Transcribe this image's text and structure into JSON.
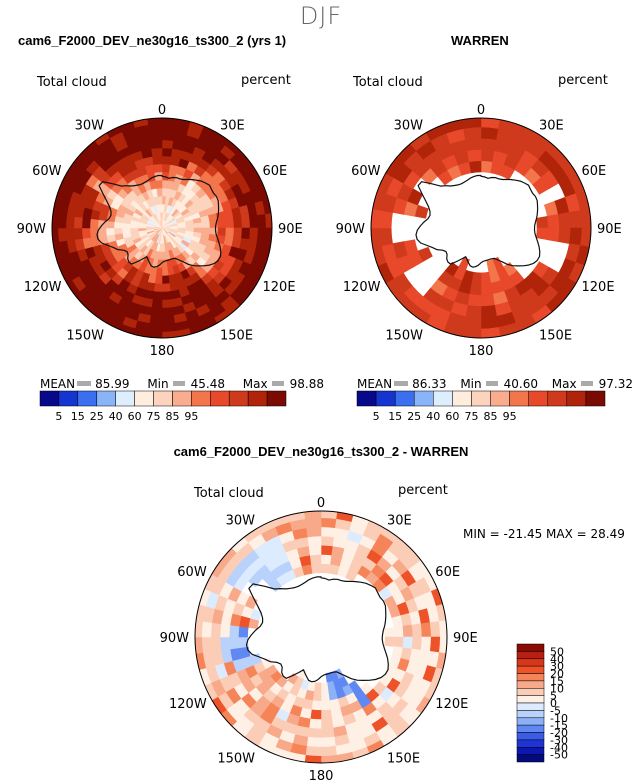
{
  "page": {
    "season": "DJF"
  },
  "panels": {
    "model": {
      "title": "cam6_F2000_DEV_ne30g16_ts300_2 (yrs 1)",
      "variable": "Total cloud",
      "units": "percent",
      "stats": {
        "mean_label": "MEAN",
        "mean": "85.99",
        "min_label": "Min",
        "min": "45.48",
        "max_label": "Max",
        "max": "98.88"
      }
    },
    "obs": {
      "title": "WARREN",
      "variable": "Total cloud",
      "units": "percent",
      "stats": {
        "mean_label": "MEAN",
        "mean": "86.33",
        "min_label": "Min",
        "min": "40.60",
        "max_label": "Max",
        "max": "97.32"
      }
    },
    "diff": {
      "title": "cam6_F2000_DEV_ne30g16_ts300_2 - WARREN",
      "variable": "Total cloud",
      "units": "percent",
      "stats_text": "MIN = -21.45  MAX =  28.49"
    }
  },
  "chart_data": [
    {
      "type": "heatmap",
      "projection": "south-polar-stereographic",
      "title": "cam6_F2000_DEV_ne30g16_ts300_2 (yrs 1)",
      "variable": "Total cloud",
      "units": "percent",
      "longitude_labels": [
        "0",
        "30E",
        "60E",
        "90E",
        "120E",
        "150E",
        "180",
        "150W",
        "120W",
        "90W",
        "60W",
        "30W"
      ],
      "colorbar": {
        "levels": [
          "5",
          "15",
          "25",
          "40",
          "60",
          "75",
          "85",
          "95"
        ],
        "colors": [
          "#08088a",
          "#1535d0",
          "#3b6ff0",
          "#8ab4f8",
          "#ddeeff",
          "#ffeee0",
          "#fcd3bc",
          "#f9ac8e",
          "#f3754c",
          "#e8492a",
          "#d03a1c",
          "#b0240a",
          "#7a0a02"
        ]
      },
      "stats": {
        "mean": 85.99,
        "min": 45.48,
        "max": 98.88
      }
    },
    {
      "type": "heatmap",
      "projection": "south-polar-stereographic",
      "title": "WARREN",
      "variable": "Total cloud",
      "units": "percent",
      "longitude_labels": [
        "0",
        "30E",
        "60E",
        "90E",
        "120E",
        "150E",
        "180",
        "150W",
        "120W",
        "90W",
        "60W",
        "30W"
      ],
      "colorbar": {
        "levels": [
          "5",
          "15",
          "25",
          "40",
          "60",
          "75",
          "85",
          "95"
        ],
        "colors": [
          "#08088a",
          "#1535d0",
          "#3b6ff0",
          "#8ab4f8",
          "#ddeeff",
          "#ffeee0",
          "#fcd3bc",
          "#f9ac8e",
          "#f3754c",
          "#e8492a",
          "#d03a1c",
          "#b0240a",
          "#7a0a02"
        ]
      },
      "stats": {
        "mean": 86.33,
        "min": 40.6,
        "max": 97.32
      }
    },
    {
      "type": "heatmap",
      "projection": "south-polar-stereographic",
      "title": "cam6_F2000_DEV_ne30g16_ts300_2 - WARREN",
      "variable": "Total cloud",
      "units": "percent",
      "longitude_labels": [
        "0",
        "30E",
        "60E",
        "90E",
        "120E",
        "150E",
        "180",
        "150W",
        "120W",
        "90W",
        "60W",
        "30W"
      ],
      "colorbar": {
        "levels": [
          "50",
          "40",
          "30",
          "20",
          "15",
          "10",
          "5",
          "0",
          "-5",
          "-10",
          "-15",
          "-20",
          "-30",
          "-40",
          "-50"
        ],
        "colors": [
          "#8a0a04",
          "#b52012",
          "#d6361a",
          "#ee5228",
          "#f58558",
          "#f8a98a",
          "#fccdb6",
          "#fff0e6",
          "#dcebfd",
          "#b8d2fb",
          "#8db1f7",
          "#6088f2",
          "#3a5ce8",
          "#1e35d4",
          "#0c17b0",
          "#030a7e"
        ]
      },
      "stats": {
        "min": -21.45,
        "max": 28.49
      }
    }
  ]
}
